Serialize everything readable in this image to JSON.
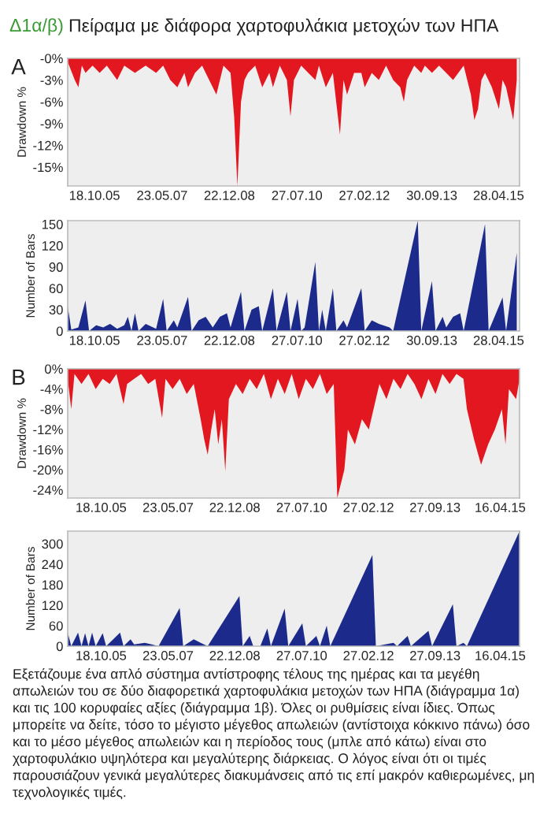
{
  "chart_data": [
    {
      "type": "area",
      "title": "Δ1α/β) Πείραμα με διάφορα χαρτοφυλάκια μετοχών των ΗΠΑ",
      "subtitle": "A",
      "ylabel": "Drawdown %",
      "color": "#e3171f",
      "grid": false,
      "x": [
        "2005-03",
        "2005-05",
        "2005-06",
        "2005-07",
        "2005-08",
        "2005-10",
        "2005-12",
        "2006-02",
        "2006-05",
        "2006-07",
        "2006-10",
        "2007-01",
        "2007-04",
        "2007-06",
        "2007-08",
        "2007-10",
        "2007-12",
        "2008-01",
        "2008-03",
        "2008-05",
        "2008-07",
        "2008-09",
        "2008-11",
        "2009-01",
        "2009-02",
        "2009-03",
        "2009-04",
        "2009-05",
        "2009-06",
        "2009-08",
        "2009-10",
        "2009-12",
        "2010-01",
        "2010-03",
        "2010-05",
        "2010-06",
        "2010-07",
        "2010-09",
        "2010-11",
        "2011-01",
        "2011-02",
        "2011-04",
        "2011-06",
        "2011-08",
        "2011-09",
        "2011-10",
        "2011-12",
        "2012-02",
        "2012-03",
        "2012-05",
        "2012-07",
        "2012-09",
        "2012-11",
        "2013-01",
        "2013-02",
        "2013-03",
        "2013-05",
        "2013-07",
        "2013-08",
        "2013-10",
        "2013-12",
        "2014-02",
        "2014-04",
        "2014-07",
        "2014-09",
        "2014-10",
        "2014-11",
        "2014-12",
        "2015-01",
        "2015-03",
        "2015-05",
        "2015-06",
        "2015-07",
        "2015-09",
        "2015-10"
      ],
      "values": [
        -0.5,
        -3,
        -4,
        -1,
        -2,
        -1,
        -2,
        -1,
        -3,
        -1,
        -2,
        -1,
        -2,
        -1,
        -3,
        -4,
        -2,
        -4,
        -2,
        -1,
        -3,
        -5,
        -1,
        -2,
        -8,
        -17.6,
        -6,
        -3,
        -2,
        -1,
        -4,
        -2,
        -4,
        -1,
        -3,
        -8,
        -3,
        -1,
        -2,
        -3,
        -1,
        -4,
        -2,
        -10.5,
        -3,
        -5,
        -2,
        -2,
        -4,
        -2,
        -3,
        -1,
        -3,
        -4,
        -6,
        -3,
        -1,
        -2,
        -1,
        -2,
        -1,
        -2,
        -3,
        -1,
        -5,
        -8.5,
        -7,
        -3,
        -2,
        -4,
        -7,
        -3,
        -4,
        -8.5,
        -3
      ],
      "xlim": [
        "2005-03-01",
        "2015-10-25"
      ],
      "xticks": [
        {
          "value": "2005-10-18",
          "label": "18.10.05"
        },
        {
          "value": "2007-05-23",
          "label": "23.05.07"
        },
        {
          "value": "2008-12-22",
          "label": "22.12.08"
        },
        {
          "value": "2010-07-27",
          "label": "27.07.10"
        },
        {
          "value": "2012-02-27",
          "label": "27.02.12"
        },
        {
          "value": "2013-09-30",
          "label": "30.09.13"
        },
        {
          "value": "2015-04-28",
          "label": "28.04.15"
        }
      ],
      "ylim": [
        -17.6,
        0
      ],
      "yticks": [
        {
          "value": 0,
          "label": "-0%"
        },
        {
          "value": -3,
          "label": "-3%"
        },
        {
          "value": -6,
          "label": "-6%"
        },
        {
          "value": -9,
          "label": "-9%"
        },
        {
          "value": -12,
          "label": "-12%"
        },
        {
          "value": -15,
          "label": "-15%"
        }
      ]
    },
    {
      "type": "area",
      "ylabel": "Number of Bars",
      "color": "#1c2a8c",
      "grid": false,
      "x": [
        "2005-03",
        "2005-04",
        "2005-06",
        "2005-08",
        "2005-09",
        "2005-11",
        "2006-01",
        "2006-03",
        "2006-05",
        "2006-07",
        "2006-08",
        "2006-09",
        "2006-10",
        "2006-11",
        "2007-01",
        "2007-04",
        "2007-06",
        "2007-07",
        "2007-09",
        "2007-10",
        "2008-01",
        "2008-02",
        "2008-04",
        "2008-06",
        "2008-08",
        "2008-10",
        "2008-12",
        "2009-01",
        "2009-04",
        "2009-05",
        "2009-07",
        "2009-09",
        "2009-10",
        "2010-01",
        "2010-02",
        "2010-05",
        "2010-06",
        "2010-08",
        "2010-09",
        "2010-10",
        "2011-01",
        "2011-02",
        "2011-03",
        "2011-04",
        "2011-06",
        "2011-07",
        "2011-09",
        "2011-10",
        "2012-02",
        "2012-03",
        "2012-05",
        "2012-07",
        "2012-10",
        "2012-11",
        "2013-06",
        "2013-07",
        "2013-10",
        "2013-11",
        "2014-01",
        "2014-02",
        "2014-04",
        "2014-06",
        "2014-07",
        "2015-01",
        "2015-02",
        "2015-06",
        "2015-07",
        "2015-10"
      ],
      "values": [
        35,
        2,
        5,
        43,
        0,
        8,
        5,
        10,
        3,
        8,
        20,
        0,
        25,
        0,
        10,
        3,
        45,
        0,
        15,
        5,
        48,
        0,
        15,
        20,
        5,
        20,
        25,
        5,
        55,
        0,
        30,
        35,
        0,
        60,
        0,
        55,
        0,
        45,
        0,
        5,
        97,
        0,
        30,
        0,
        60,
        0,
        15,
        5,
        60,
        0,
        15,
        10,
        5,
        0,
        155,
        0,
        70,
        0,
        20,
        5,
        20,
        25,
        0,
        150,
        0,
        47,
        0,
        110
      ],
      "xlim": [
        "2005-03-01",
        "2015-10-25"
      ],
      "xticks": [
        {
          "value": "2005-10-18",
          "label": "18.10.05"
        },
        {
          "value": "2007-05-23",
          "label": "23.05.07"
        },
        {
          "value": "2008-12-22",
          "label": "22.12.08"
        },
        {
          "value": "2010-07-27",
          "label": "27.07.10"
        },
        {
          "value": "2012-02-27",
          "label": "27.02.12"
        },
        {
          "value": "2013-09-30",
          "label": "30.09.13"
        },
        {
          "value": "2015-04-28",
          "label": "28.04.15"
        }
      ],
      "ylim": [
        0,
        155
      ],
      "yticks": [
        0,
        30,
        60,
        90,
        120,
        150
      ]
    },
    {
      "type": "area",
      "subtitle": "B",
      "ylabel": "Drawdown %",
      "color": "#e3171f",
      "grid": false,
      "x": [
        "2005-01",
        "2005-02",
        "2005-03",
        "2005-05",
        "2005-07",
        "2005-09",
        "2005-11",
        "2006-01",
        "2006-03",
        "2006-05",
        "2006-06",
        "2006-08",
        "2006-10",
        "2006-12",
        "2007-02",
        "2007-04",
        "2007-05",
        "2007-07",
        "2007-09",
        "2007-11",
        "2008-01",
        "2008-03",
        "2008-04",
        "2008-05",
        "2008-06",
        "2008-07",
        "2008-08",
        "2008-09",
        "2008-10",
        "2008-11",
        "2009-01",
        "2009-03",
        "2009-05",
        "2009-07",
        "2009-09",
        "2009-11",
        "2010-01",
        "2010-03",
        "2010-05",
        "2010-07",
        "2010-09",
        "2010-11",
        "2011-01",
        "2011-03",
        "2011-05",
        "2011-06",
        "2011-08",
        "2011-09",
        "2011-11",
        "2012-01",
        "2012-03",
        "2012-05",
        "2012-06",
        "2012-08",
        "2012-10",
        "2012-12",
        "2013-02",
        "2013-04",
        "2013-06",
        "2013-08",
        "2013-10",
        "2013-12",
        "2014-02",
        "2014-04",
        "2014-06",
        "2014-07",
        "2014-09",
        "2014-11",
        "2015-01",
        "2015-03",
        "2015-05",
        "2015-06",
        "2015-07",
        "2015-09",
        "2015-10"
      ],
      "values": [
        -2,
        -8,
        -1,
        -3,
        -1,
        -4,
        -2,
        -3,
        -1,
        -7,
        -3,
        -2,
        -1,
        -3,
        -2,
        -9.7,
        -2,
        -4,
        -2,
        -5,
        -3,
        -10,
        -14,
        -17,
        -12,
        -8,
        -15,
        -10,
        -20.3,
        -6,
        -3,
        -5,
        -2,
        -4,
        -1,
        -6,
        -2,
        -5,
        -1,
        -6,
        -2,
        -4,
        -1,
        -5,
        -3,
        -25.6,
        -20,
        -12,
        -15,
        -10,
        -12,
        -6,
        -3,
        -6,
        -2,
        -4,
        -1,
        -3,
        -6,
        -2,
        -5,
        -1,
        -3,
        -1,
        -2,
        -8,
        -14,
        -19,
        -15,
        -12,
        -8,
        -15,
        -4,
        -6,
        -2
      ],
      "xlim": [
        "2005-01-01",
        "2015-10-01"
      ],
      "xticks": [
        {
          "value": "2005-10-18",
          "label": "18.10.05"
        },
        {
          "value": "2007-05-23",
          "label": "23.05.07"
        },
        {
          "value": "2008-12-22",
          "label": "22.12.08"
        },
        {
          "value": "2010-07-27",
          "label": "27.07.10"
        },
        {
          "value": "2012-02-27",
          "label": "27.02.12"
        },
        {
          "value": "2013-09-27",
          "label": "27.09.13"
        },
        {
          "value": "2015-04-16",
          "label": "16.04.15"
        }
      ],
      "ylim": [
        -25.6,
        0
      ],
      "yticks": [
        {
          "value": 0,
          "label": "0%"
        },
        {
          "value": -4,
          "label": "-4%"
        },
        {
          "value": -8,
          "label": "-8%"
        },
        {
          "value": -12,
          "label": "-12%"
        },
        {
          "value": -16,
          "label": "-16%"
        },
        {
          "value": -20,
          "label": "-20%"
        },
        {
          "value": -24,
          "label": "-24%"
        }
      ]
    },
    {
      "type": "area",
      "ylabel": "Number of Bars",
      "color": "#1c2a8c",
      "grid": false,
      "x": [
        "2005-01",
        "2005-02",
        "2005-04",
        "2005-05",
        "2005-06",
        "2005-07",
        "2005-08",
        "2005-09",
        "2005-11",
        "2005-12",
        "2006-04",
        "2006-05",
        "2006-07",
        "2006-08",
        "2006-11",
        "2007-01",
        "2007-03",
        "2007-09",
        "2007-10",
        "2008-01",
        "2008-03",
        "2008-05",
        "2009-02",
        "2009-03",
        "2009-05",
        "2009-06",
        "2009-08",
        "2009-10",
        "2009-11",
        "2010-03",
        "2010-04",
        "2010-08",
        "2010-09",
        "2010-12",
        "2011-01",
        "2011-03",
        "2011-04",
        "2012-04",
        "2012-05",
        "2012-10",
        "2012-11",
        "2013-02",
        "2013-03",
        "2013-08",
        "2013-09",
        "2014-03",
        "2014-04",
        "2014-06",
        "2014-07",
        "2015-10"
      ],
      "values": [
        40,
        0,
        40,
        0,
        38,
        0,
        40,
        0,
        38,
        0,
        40,
        0,
        20,
        5,
        10,
        5,
        0,
        112,
        0,
        20,
        10,
        0,
        147,
        0,
        30,
        0,
        0,
        52,
        0,
        110,
        0,
        67,
        0,
        30,
        0,
        60,
        0,
        267,
        0,
        10,
        0,
        30,
        0,
        45,
        0,
        123,
        0,
        10,
        0,
        337
      ],
      "xlim": [
        "2005-01-01",
        "2015-10-01"
      ],
      "xticks": [
        {
          "value": "2005-10-18",
          "label": "18.10.05"
        },
        {
          "value": "2007-05-23",
          "label": "23.05.07"
        },
        {
          "value": "2008-12-22",
          "label": "22.12.08"
        },
        {
          "value": "2010-07-27",
          "label": "27.07.10"
        },
        {
          "value": "2012-02-27",
          "label": "27.02.12"
        },
        {
          "value": "2013-09-27",
          "label": "27.09.13"
        },
        {
          "value": "2015-04-16",
          "label": "16.04.15"
        }
      ],
      "ylim": [
        0,
        337
      ],
      "yticks": [
        0,
        60,
        120,
        180,
        240,
        300
      ]
    },
    {
      "type": "other",
      "annotations": [
        "Εξετάζουμε ένα απλό σύστημα αντίστροφης τέλους της ημέρας και τα μεγέθη απωλειών του σε δύο διαφορετικά χαρτοφυλάκια μετοχών των ΗΠΑ (διάγραμμα 1α) και τις 100 κορυφαίες αξίες (διάγραμμα 1β). Όλες οι ρυθμίσεις είναι ίδιες. Όπως μπορείτε να δείτε, τόσο το μέγιστο μέγεθος απωλειών (αντίστοιχα κόκκινο πάνω) όσο και το μέσο μέγεθος απωλειών και η περίοδος τους (μπλε από κάτω) είναι στο χαρτοφυλάκιο υψηλότερα και μεγαλύτερης διάρκειας. Ο λόγος είναι ότι οι τιμές παρουσιάζουν γενικά μεγαλύτερες διακυμάνσεις από τις επί μακρόν καθιερωμένες, μη τεχνολογικές τιμές."
      ]
    }
  ]
}
